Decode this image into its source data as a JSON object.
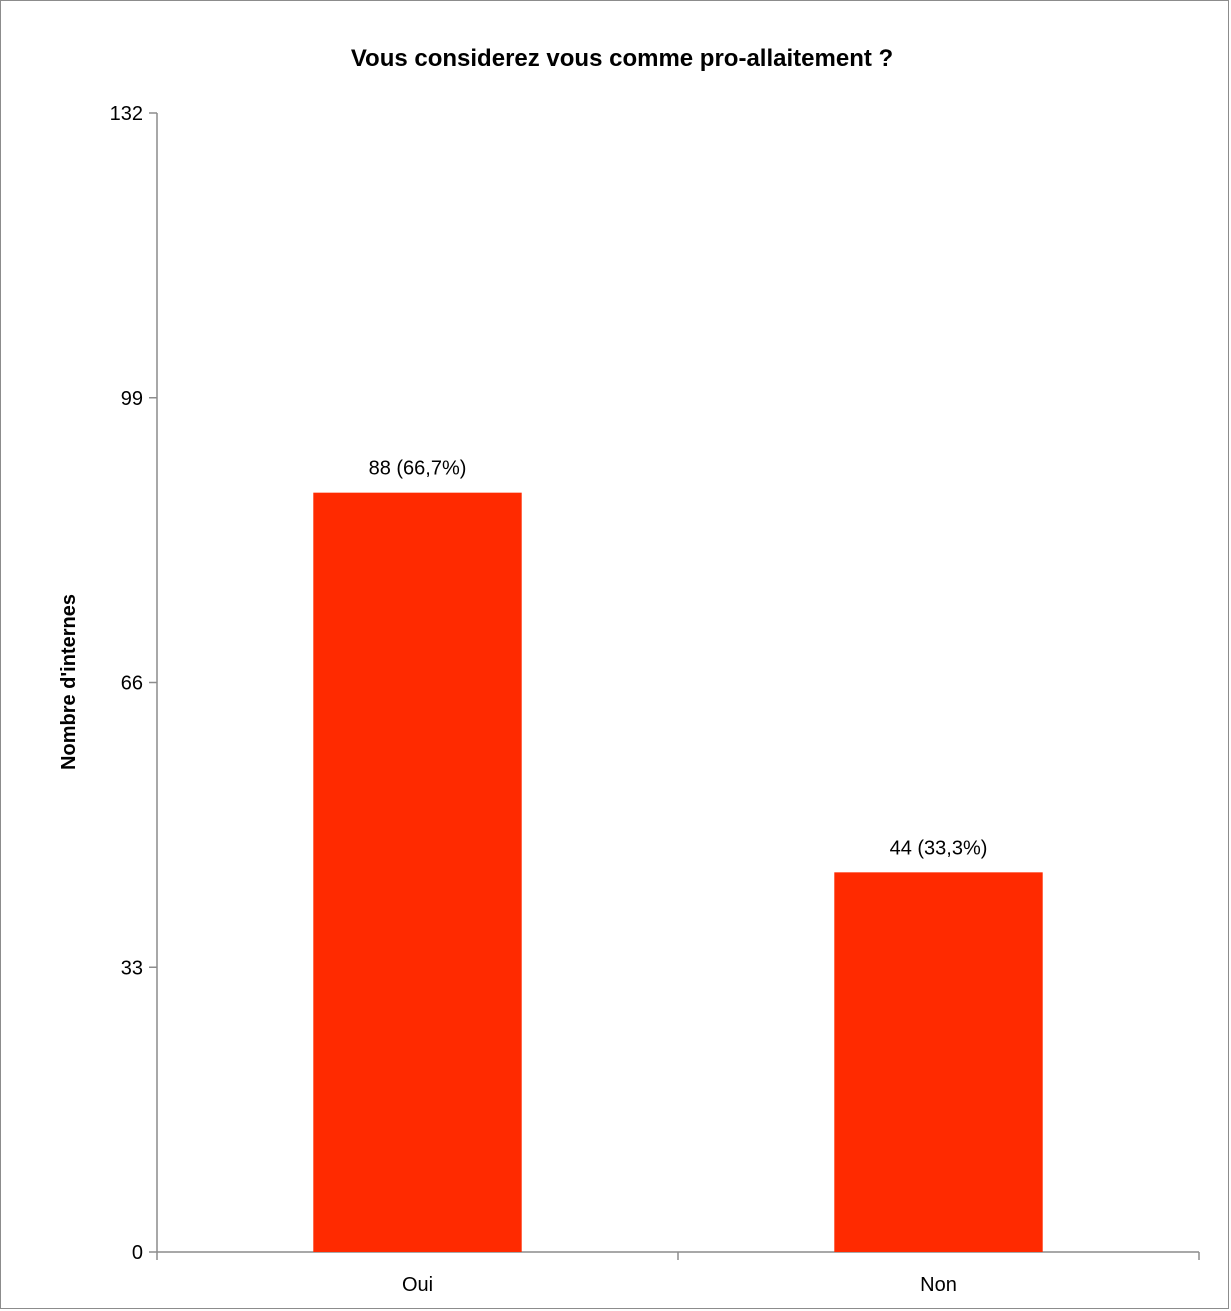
{
  "chart_data": {
    "type": "bar",
    "title": "Vous considerez vous comme pro-allaitement ?",
    "xlabel": "",
    "ylabel": "Nombre d'internes",
    "categories": [
      "Oui",
      "Non"
    ],
    "values": [
      88,
      44
    ],
    "data_labels": [
      "88 (66,7%)",
      "44 (33,3%)"
    ],
    "ylim": [
      0,
      132
    ],
    "yticks": [
      0,
      33,
      66,
      99,
      132
    ],
    "grid": false,
    "legend": "none",
    "bar_color": "#ff2a00"
  }
}
